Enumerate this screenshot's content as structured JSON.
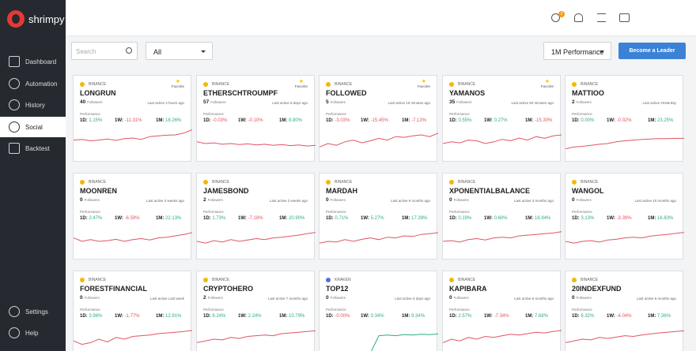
{
  "app": {
    "name": "shrimpy"
  },
  "sidebar": {
    "items": [
      {
        "label": "Dashboard",
        "icon": "dashboard-icon"
      },
      {
        "label": "Automation",
        "icon": "automation-icon"
      },
      {
        "label": "History",
        "icon": "history-icon"
      },
      {
        "label": "Social",
        "icon": "social-icon",
        "active": true
      },
      {
        "label": "Backtest",
        "icon": "backtest-icon"
      }
    ],
    "bottom": [
      {
        "label": "Settings",
        "icon": "gear-icon"
      },
      {
        "label": "Help",
        "icon": "help-icon"
      }
    ]
  },
  "topbar": {
    "notification_count": "2"
  },
  "controls": {
    "search_placeholder": "Search",
    "filter_value": "All",
    "sort_value": "1M Performance",
    "leader_button": "Become a Leader"
  },
  "colors": {
    "positive": "#2fae7a",
    "negative": "#e05561",
    "accent": "#3b82d6",
    "sidebar": "#262a30"
  },
  "labels": {
    "performance": "Performance",
    "followers": "Followers",
    "favorite": "Favorite",
    "d1": "1D:",
    "w1": "1W:",
    "m1": "1M:"
  },
  "cards": [
    {
      "exchange": "BINANCE",
      "favorite": true,
      "name": "LONGRUN",
      "followers": "40",
      "last_active": "Last active 4 hours ago",
      "d1": "1.15%",
      "w1": "-11.31%",
      "m1": "18.26%",
      "trend": "neg",
      "spark": [
        0.6,
        0.62,
        0.58,
        0.6,
        0.63,
        0.59,
        0.64,
        0.66,
        0.62,
        0.7,
        0.72,
        0.74,
        0.75,
        0.8,
        0.9
      ]
    },
    {
      "exchange": "BINANCE",
      "favorite": true,
      "name": "ETHERSCHTROUMPF",
      "followers": "57",
      "last_active": "Last active 6 days ago",
      "d1": "-0.03%",
      "w1": "-0.10%",
      "m1": "8.80%",
      "trend": "neg",
      "spark": [
        0.55,
        0.5,
        0.52,
        0.48,
        0.5,
        0.47,
        0.49,
        0.46,
        0.48,
        0.45,
        0.47,
        0.44,
        0.46,
        0.43,
        0.45
      ]
    },
    {
      "exchange": "BINANCE",
      "favorite": true,
      "name": "FOLLOWED",
      "followers": "5",
      "last_active": "Last active 15 minutes ago",
      "d1": "-3.03%",
      "w1": "-15.45%",
      "m1": "-7.13%",
      "trend": "neg",
      "spark": [
        0.4,
        0.5,
        0.45,
        0.55,
        0.6,
        0.52,
        0.58,
        0.65,
        0.6,
        0.7,
        0.68,
        0.72,
        0.75,
        0.7,
        0.8
      ]
    },
    {
      "exchange": "BINANCE",
      "favorite": true,
      "name": "YAMANOS",
      "followers": "35",
      "last_active": "Last active 50 minutes ago",
      "d1": "0.55%",
      "w1": "0.27%",
      "m1": "-15.30%",
      "trend": "neg",
      "spark": [
        0.5,
        0.55,
        0.52,
        0.6,
        0.58,
        0.5,
        0.55,
        0.62,
        0.58,
        0.66,
        0.6,
        0.7,
        0.65,
        0.72,
        0.75
      ]
    },
    {
      "exchange": "BINANCE",
      "favorite": false,
      "name": "MATTIOO",
      "followers": "2",
      "last_active": "Last active Yesterday",
      "d1": "0.00%",
      "w1": "-0.02%",
      "m1": "23.25%",
      "trend": "neg",
      "spark": [
        0.35,
        0.4,
        0.42,
        0.45,
        0.48,
        0.5,
        0.55,
        0.58,
        0.6,
        0.62,
        0.63,
        0.64,
        0.64,
        0.65,
        0.65
      ]
    },
    {
      "exchange": "BINANCE",
      "favorite": false,
      "name": "MOONREN",
      "followers": "0",
      "last_active": "Last active 3 weeks ago",
      "d1": "2.47%",
      "w1": "-6.59%",
      "m1": "22.13%",
      "trend": "neg",
      "spark": [
        0.6,
        0.5,
        0.55,
        0.5,
        0.52,
        0.56,
        0.5,
        0.55,
        0.58,
        0.54,
        0.6,
        0.62,
        0.66,
        0.7,
        0.75
      ]
    },
    {
      "exchange": "BINANCE",
      "favorite": false,
      "name": "JAMESBOND",
      "followers": "2",
      "last_active": "Last active 2 weeks ago",
      "d1": "1.73%",
      "w1": "-7.18%",
      "m1": "20.90%",
      "trend": "neg",
      "spark": [
        0.5,
        0.45,
        0.52,
        0.48,
        0.55,
        0.5,
        0.54,
        0.58,
        0.55,
        0.6,
        0.62,
        0.65,
        0.68,
        0.72,
        0.76
      ]
    },
    {
      "exchange": "BINANCE",
      "favorite": false,
      "name": "MARDAH",
      "followers": "0",
      "last_active": "Last active 9 months ago",
      "d1": "0.71%",
      "w1": "5.27%",
      "m1": "17.39%",
      "trend": "neg",
      "spark": [
        0.45,
        0.5,
        0.48,
        0.55,
        0.5,
        0.56,
        0.6,
        0.55,
        0.62,
        0.6,
        0.66,
        0.64,
        0.7,
        0.72,
        0.75
      ]
    },
    {
      "exchange": "BINANCE",
      "favorite": false,
      "name": "XPONENTIALBALANCE",
      "followers": "0",
      "last_active": "Last active 3 months ago",
      "d1": "0.19%",
      "w1": "0.60%",
      "m1": "16.94%",
      "trend": "neg",
      "spark": [
        0.5,
        0.52,
        0.48,
        0.55,
        0.58,
        0.54,
        0.6,
        0.62,
        0.6,
        0.66,
        0.68,
        0.7,
        0.72,
        0.74,
        0.78
      ]
    },
    {
      "exchange": "BINANCE",
      "favorite": false,
      "name": "WANGOL",
      "followers": "0",
      "last_active": "Last active 10 months ago",
      "d1": "3.13%",
      "w1": "-3.39%",
      "m1": "16.83%",
      "trend": "neg",
      "spark": [
        0.5,
        0.45,
        0.5,
        0.52,
        0.48,
        0.54,
        0.56,
        0.6,
        0.62,
        0.6,
        0.65,
        0.68,
        0.7,
        0.73,
        0.76
      ]
    },
    {
      "exchange": "BINANCE",
      "favorite": false,
      "name": "FORESTFINANCIAL",
      "followers": "0",
      "last_active": "Last active Last week",
      "d1": "3.98%",
      "w1": "-1.77%",
      "m1": "12.91%",
      "trend": "neg",
      "spark": [
        0.45,
        0.35,
        0.4,
        0.5,
        0.42,
        0.55,
        0.5,
        0.58,
        0.6,
        0.62,
        0.66,
        0.68,
        0.7,
        0.72,
        0.75
      ]
    },
    {
      "exchange": "BINANCE",
      "favorite": false,
      "name": "CRYPTOHERO",
      "followers": "2",
      "last_active": "Last active 7 months ago",
      "d1": "8.24%",
      "w1": "2.24%",
      "m1": "10.79%",
      "trend": "neg",
      "spark": [
        0.4,
        0.45,
        0.5,
        0.48,
        0.55,
        0.52,
        0.58,
        0.6,
        0.62,
        0.6,
        0.66,
        0.68,
        0.7,
        0.72,
        0.74
      ]
    },
    {
      "exchange": "KRAKEN",
      "favorite": false,
      "name": "TOP12",
      "followers": "0",
      "last_active": "Last active 5 days ago",
      "d1": "-0.00%",
      "w1": "0.34%",
      "m1": "9.34%",
      "trend": "pos",
      "spark": [
        0.1,
        0.1,
        0.1,
        0.1,
        0.1,
        0.12,
        0.1,
        0.6,
        0.62,
        0.6,
        0.63,
        0.62,
        0.64,
        0.63,
        0.65
      ]
    },
    {
      "exchange": "BINANCE",
      "favorite": false,
      "name": "KAPIBARA",
      "followers": "0",
      "last_active": "Last active 5 months ago",
      "d1": "2.57%",
      "w1": "-7.34%",
      "m1": "7.68%",
      "trend": "neg",
      "spark": [
        0.4,
        0.5,
        0.45,
        0.55,
        0.5,
        0.58,
        0.55,
        0.6,
        0.64,
        0.62,
        0.66,
        0.7,
        0.68,
        0.72,
        0.75
      ]
    },
    {
      "exchange": "BINANCE",
      "favorite": false,
      "name": "20INDEXFUND",
      "followers": "0",
      "last_active": "Last active 5 months ago",
      "d1": "6.32%",
      "w1": "-4.04%",
      "m1": "7.36%",
      "trend": "neg",
      "spark": [
        0.4,
        0.45,
        0.5,
        0.48,
        0.55,
        0.52,
        0.56,
        0.6,
        0.58,
        0.62,
        0.65,
        0.68,
        0.7,
        0.72,
        0.74
      ]
    }
  ]
}
